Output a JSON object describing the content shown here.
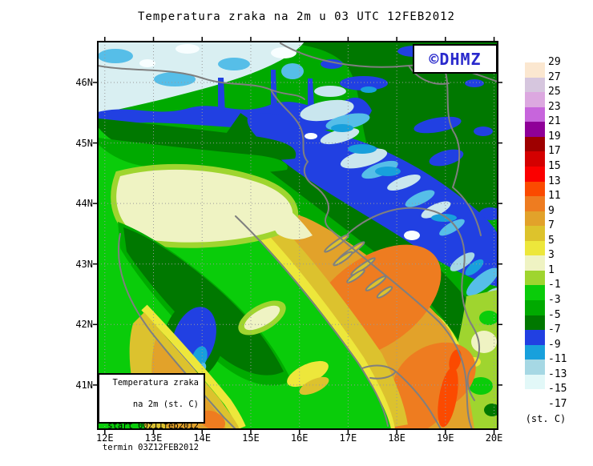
{
  "title": "Temperatura zraka na 2m u 03 UTC 12FEB2012",
  "logo": {
    "text": "©DHMZ",
    "color": "#2929CC"
  },
  "legend_box": {
    "lines": [
      "Temperatura zraka",
      "na 2m (st. C)",
      "start 00z11feb2012",
      "termin 03Z12FEB2012"
    ]
  },
  "axes": {
    "lat": [
      "46N",
      "45N",
      "44N",
      "43N",
      "42N",
      "41N"
    ],
    "lon": [
      "12E",
      "13E",
      "14E",
      "15E",
      "16E",
      "17E",
      "18E",
      "19E",
      "20E"
    ]
  },
  "colorbar": {
    "unit": "(st. C)",
    "labels": [
      "29",
      "27",
      "25",
      "23",
      "21",
      "19",
      "17",
      "15",
      "13",
      "11",
      "9",
      "7",
      "5",
      "3",
      "1",
      "-1",
      "-3",
      "-5",
      "-7",
      "-9",
      "-11",
      "-13",
      "-15",
      "-17"
    ],
    "cell_colors": [
      "#FBE7D0",
      "#D6C6DE",
      "#DCA8E0",
      "#C765DC",
      "#8F0098",
      "#9E0000",
      "#D40000",
      "#FB0000",
      "#FB4A00",
      "#EE7C20",
      "#E2A22A",
      "#DDC32C",
      "#EDE73B",
      "#EFF3C3",
      "#9FD52F",
      "#0ACC0A",
      "#00AA00",
      "#007800",
      "#2140E2",
      "#18A0DC",
      "#A6D8E4",
      "#E2F8F8",
      "#FFFFFF"
    ]
  },
  "chart_data": {
    "type": "heatmap",
    "title": "Temperatura zraka na 2m u 03 UTC 12FEB2012",
    "x_axis": {
      "label": "longitude",
      "ticks": [
        "12E",
        "13E",
        "14E",
        "15E",
        "16E",
        "17E",
        "18E",
        "19E",
        "20E"
      ]
    },
    "y_axis": {
      "label": "latitude",
      "ticks": [
        "46N",
        "45N",
        "44N",
        "43N",
        "42N",
        "41N"
      ]
    },
    "scale": {
      "unit": "st. C",
      "boundaries": [
        29,
        27,
        25,
        23,
        21,
        19,
        17,
        15,
        13,
        11,
        9,
        7,
        5,
        3,
        1,
        -1,
        -3,
        -5,
        -7,
        -9,
        -11,
        -13,
        -15,
        -17
      ],
      "colors": [
        "#FBE7D0",
        "#D6C6DE",
        "#DCA8E0",
        "#C765DC",
        "#8F0098",
        "#9E0000",
        "#D40000",
        "#FB0000",
        "#FB4A00",
        "#EE7C20",
        "#E2A22A",
        "#DDC32C",
        "#EDE73B",
        "#EFF3C3",
        "#9FD52F",
        "#0ACC0A",
        "#00AA00",
        "#007800",
        "#2140E2",
        "#18A0DC",
        "#A6D8E4",
        "#E2F8F8",
        "#FFFFFF"
      ]
    },
    "features": [
      "Alps / far north-west: -11 to -15 st.C (pale blue and white patches)",
      "Band across Slovenia and NW Croatia: -7 to -9 st.C (blue)",
      "NE continental Croatia / Hungary / Serbia: -5 to -7 st.C (dark green) with -7 to -9 pockets",
      "Dinaric Alps ridge (NW-SE band): -9 to -15 st.C (blue, cyan, pale blue)",
      "Po valley, northern Italy: +1 to +3 st.C (pale yellow) ringed by -1 to +1 yellow-green",
      "Apennine cold spot (central Italy): -7 to -11 st.C (blue over dark green)",
      "Adriatic Sea: +7 to +11 st.C (amber / orange), warm core +9 to +11 in central and southern Adriatic",
      "SE Adriatic near Albanian coast: +11 to +13 st.C streak (orange-red)",
      "Dalmatian coastal strip: +3 to +7 st.C (yellow / gold)",
      "Tyrrhenian coast of Italy: +7 to +11 st.C (gold / amber / orange spots)"
    ]
  }
}
